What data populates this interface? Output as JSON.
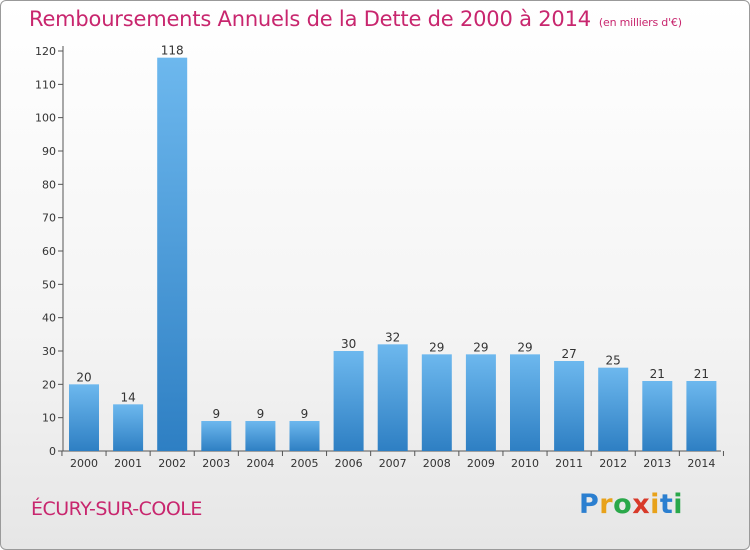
{
  "header": {
    "title": "Remboursements Annuels de la Dette de 2000 à 2014",
    "subtitle": "(en milliers d'€)"
  },
  "footer": {
    "commune": "ÉCURY-SUR-COOLE",
    "logo_letters": [
      "P",
      "r",
      "o",
      "x",
      "i",
      "t",
      "i"
    ],
    "logo_colors": [
      "#2b7fd0",
      "#e8a21a",
      "#2aa84a",
      "#d83a2a",
      "#e8a21a",
      "#2b7fd0",
      "#2aa84a"
    ]
  },
  "chart_data": {
    "type": "bar",
    "categories": [
      "2000",
      "2001",
      "2002",
      "2003",
      "2004",
      "2005",
      "2006",
      "2007",
      "2008",
      "2009",
      "2010",
      "2011",
      "2012",
      "2013",
      "2014"
    ],
    "values": [
      20,
      14,
      118,
      9,
      9,
      9,
      30,
      32,
      29,
      29,
      29,
      27,
      25,
      21,
      21
    ],
    "ylim": [
      0,
      120
    ],
    "yticks": [
      0,
      10,
      20,
      30,
      40,
      50,
      60,
      70,
      80,
      90,
      100,
      110,
      120
    ],
    "grid": false,
    "bar_color_light": "#6db8ee",
    "bar_color_dark": "#2e7fc3",
    "text_color": "#333333"
  }
}
